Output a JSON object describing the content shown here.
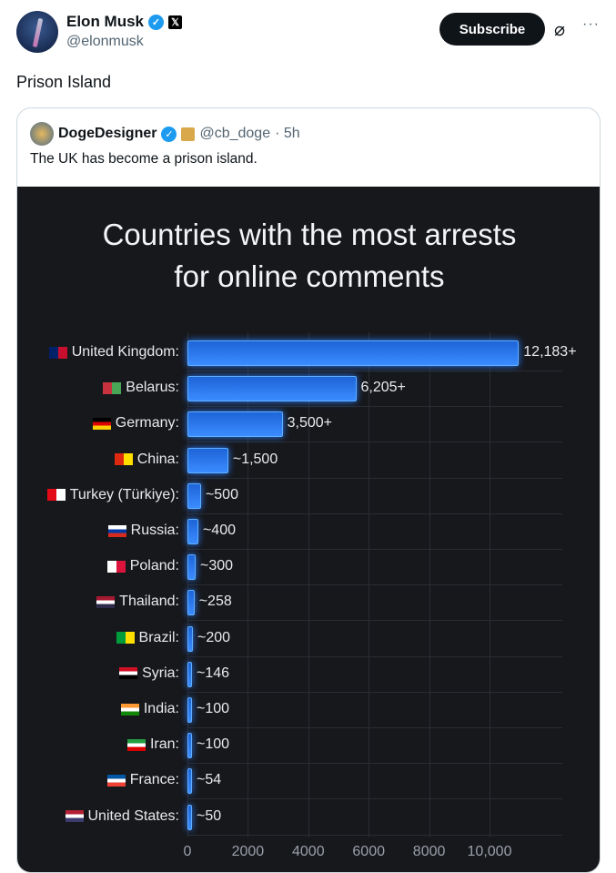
{
  "post": {
    "author": "Elon Musk",
    "handle": "@elonmusk",
    "subscribe": "Subscribe",
    "more": "···",
    "text": "Prison Island"
  },
  "quote": {
    "author": "DogeDesigner",
    "handle": "@cb_doge",
    "time": "· 5h",
    "text": "The UK has become a prison island."
  },
  "chart_data": {
    "type": "bar",
    "orientation": "horizontal",
    "title": "Countries with the most arrests for online comments",
    "title_lines": [
      "Countries with the most arrests",
      "for online comments"
    ],
    "categories": [
      "United Kingdom:",
      "Belarus:",
      "Germany:",
      "China:",
      "Turkey (Türkiye):",
      "Russia:",
      "Poland:",
      "Thailand:",
      "Brazil:",
      "Syria:",
      "India:",
      "Iran:",
      "France:",
      "United States:"
    ],
    "values": [
      12183,
      6205,
      3500,
      1500,
      500,
      400,
      300,
      258,
      200,
      146,
      100,
      100,
      54,
      50
    ],
    "value_labels": [
      "12,183+",
      "6,205+",
      "3,500+",
      "~1,500",
      "~500",
      "~400",
      "~300",
      "~258",
      "~200",
      "~146",
      "~100",
      "~100",
      "~54",
      "~50"
    ],
    "flags": [
      [
        "#012169",
        "#c8102e"
      ],
      [
        "#c8313e",
        "#4aa657"
      ],
      [
        "#000",
        "#dd0000",
        "#ffce00"
      ],
      [
        "#de2910",
        "#ffde00"
      ],
      [
        "#e30a17",
        "#fff"
      ],
      [
        "#fff",
        "#0039a6",
        "#d52b1e"
      ],
      [
        "#fff",
        "#dc143c"
      ],
      [
        "#a51931",
        "#fff",
        "#2d2a4a"
      ],
      [
        "#009c3b",
        "#ffdf00"
      ],
      [
        "#ce1126",
        "#fff",
        "#000"
      ],
      [
        "#ff9933",
        "#fff",
        "#138808"
      ],
      [
        "#239f40",
        "#fff",
        "#da0000"
      ],
      [
        "#0055a4",
        "#fff",
        "#ef4135"
      ],
      [
        "#b22234",
        "#fff",
        "#3c3b6e"
      ]
    ],
    "xticks": [
      0,
      2000,
      4000,
      6000,
      8000,
      10000
    ],
    "xtick_labels": [
      "0",
      "2000",
      "4000",
      "6000",
      "8000",
      "10,000"
    ],
    "bar_color": "#2f80ff",
    "background": "#17181c"
  }
}
